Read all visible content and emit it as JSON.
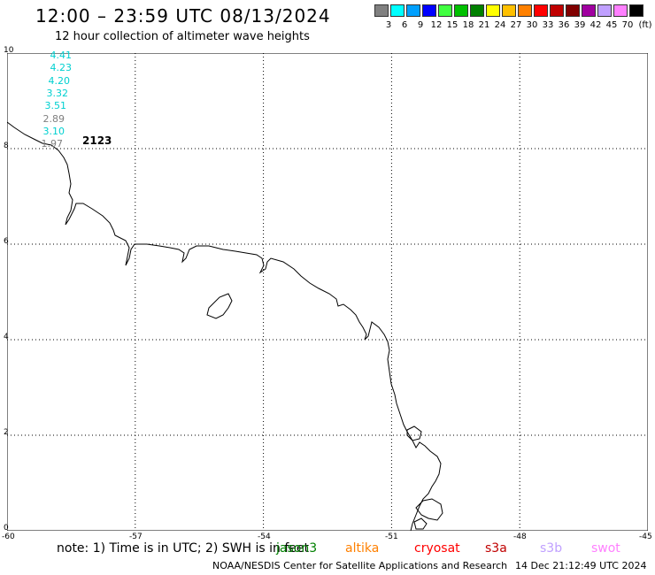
{
  "header": {
    "title": "12:00 – 23:59 UTC 08/13/2024",
    "subtitle": "12 hour collection of altimeter wave heights"
  },
  "legend": {
    "unit": "(ft)",
    "items": [
      {
        "label": "3",
        "color": "#808080"
      },
      {
        "label": "6",
        "color": "#00ffff"
      },
      {
        "label": "9",
        "color": "#00a0ff"
      },
      {
        "label": "12",
        "color": "#0000ff"
      },
      {
        "label": "15",
        "color": "#40ff40"
      },
      {
        "label": "18",
        "color": "#00c000"
      },
      {
        "label": "21",
        "color": "#008000"
      },
      {
        "label": "24",
        "color": "#ffff00"
      },
      {
        "label": "27",
        "color": "#ffc000"
      },
      {
        "label": "30",
        "color": "#ff8000"
      },
      {
        "label": "33",
        "color": "#ff0000"
      },
      {
        "label": "36",
        "color": "#c00000"
      },
      {
        "label": "39",
        "color": "#800000"
      },
      {
        "label": "42",
        "color": "#a000a0"
      },
      {
        "label": "45",
        "color": "#c0a0ff"
      },
      {
        "label": "70",
        "color": "#ff80ff"
      },
      {
        "label": "",
        "color": "#000000"
      }
    ]
  },
  "map": {
    "y_ticks": [
      "10",
      "8",
      "6",
      "4",
      "2",
      "0"
    ],
    "x_ticks": [
      "-60",
      "-57",
      "-54",
      "-51",
      "-48",
      "-45"
    ]
  },
  "wave_heights": [
    {
      "value": "4.41",
      "color": "#00d0d0"
    },
    {
      "value": "4.23",
      "color": "#00d0d0"
    },
    {
      "value": "4.20",
      "color": "#00d0d0"
    },
    {
      "value": "3.32",
      "color": "#00d0d0"
    },
    {
      "value": "3.51",
      "color": "#00d0d0"
    },
    {
      "value": "2.89",
      "color": "#808080"
    },
    {
      "value": "3.10",
      "color": "#00d0d0"
    },
    {
      "value": "1.97",
      "color": "#808080"
    }
  ],
  "track_time": {
    "value": "2123",
    "color": "#ff80ff"
  },
  "footer": {
    "note": "note:  1) Time is in UTC;  2) SWH is in feet",
    "satellites": [
      {
        "name": "jason3",
        "color": "#008000"
      },
      {
        "name": "altika",
        "color": "#ff8000"
      },
      {
        "name": "cryosat",
        "color": "#ff0000"
      },
      {
        "name": "s3a",
        "color": "#c00000"
      },
      {
        "name": "s3b",
        "color": "#c0a0ff"
      },
      {
        "name": "swot",
        "color": "#ff80ff"
      }
    ],
    "credit": "NOAA/NESDIS Center for Satellite Applications and Research",
    "timestamp": "14 Dec 21:12:49 UTC 2024"
  }
}
